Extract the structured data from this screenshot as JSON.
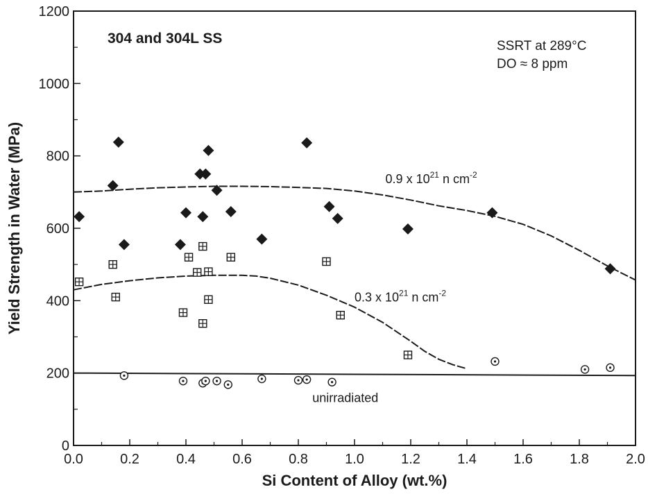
{
  "chart_data": {
    "type": "scatter",
    "title": "304 and 304L SS",
    "annotation_lines": [
      "SSRT at 289°C",
      "DO ≈ 8 ppm"
    ],
    "xlabel": "Si Content of Alloy (wt.%)",
    "ylabel": "Yield Strength in Water (MPa)",
    "xlim": [
      0.0,
      2.0
    ],
    "ylim": [
      0,
      1200
    ],
    "xticks": [
      "0.0",
      "0.2",
      "0.4",
      "0.6",
      "0.8",
      "1.0",
      "1.2",
      "1.4",
      "1.6",
      "1.8",
      "2.0"
    ],
    "yticks": [
      "0",
      "200",
      "400",
      "600",
      "800",
      "1000",
      "1200"
    ],
    "grid": false,
    "series": [
      {
        "marker": "filled-diamond",
        "points": [
          {
            "x": 0.02,
            "y": 632
          },
          {
            "x": 0.14,
            "y": 718
          },
          {
            "x": 0.16,
            "y": 838
          },
          {
            "x": 0.18,
            "y": 555
          },
          {
            "x": 0.38,
            "y": 555
          },
          {
            "x": 0.4,
            "y": 643
          },
          {
            "x": 0.45,
            "y": 750
          },
          {
            "x": 0.46,
            "y": 632
          },
          {
            "x": 0.47,
            "y": 750
          },
          {
            "x": 0.48,
            "y": 815
          },
          {
            "x": 0.51,
            "y": 705
          },
          {
            "x": 0.56,
            "y": 646
          },
          {
            "x": 0.67,
            "y": 570
          },
          {
            "x": 0.83,
            "y": 836
          },
          {
            "x": 0.91,
            "y": 660
          },
          {
            "x": 0.94,
            "y": 627
          },
          {
            "x": 1.19,
            "y": 598
          },
          {
            "x": 1.49,
            "y": 643
          },
          {
            "x": 1.91,
            "y": 488
          }
        ]
      },
      {
        "marker": "boxed-plus",
        "points": [
          {
            "x": 0.02,
            "y": 452
          },
          {
            "x": 0.14,
            "y": 500
          },
          {
            "x": 0.15,
            "y": 410
          },
          {
            "x": 0.39,
            "y": 367
          },
          {
            "x": 0.41,
            "y": 520
          },
          {
            "x": 0.44,
            "y": 478
          },
          {
            "x": 0.46,
            "y": 550
          },
          {
            "x": 0.46,
            "y": 337
          },
          {
            "x": 0.48,
            "y": 480
          },
          {
            "x": 0.48,
            "y": 403
          },
          {
            "x": 0.56,
            "y": 520
          },
          {
            "x": 0.9,
            "y": 508
          },
          {
            "x": 0.95,
            "y": 360
          },
          {
            "x": 1.19,
            "y": 250
          }
        ]
      },
      {
        "marker": "dotted-circle",
        "points": [
          {
            "x": 0.18,
            "y": 193
          },
          {
            "x": 0.39,
            "y": 178
          },
          {
            "x": 0.46,
            "y": 172
          },
          {
            "x": 0.47,
            "y": 178
          },
          {
            "x": 0.51,
            "y": 178
          },
          {
            "x": 0.55,
            "y": 168
          },
          {
            "x": 0.67,
            "y": 184
          },
          {
            "x": 0.8,
            "y": 180
          },
          {
            "x": 0.83,
            "y": 182
          },
          {
            "x": 0.92,
            "y": 175
          },
          {
            "x": 1.5,
            "y": 232
          },
          {
            "x": 1.82,
            "y": 210
          },
          {
            "x": 1.91,
            "y": 215
          }
        ]
      }
    ],
    "curves": [
      {
        "label_main": "0.9 x 10",
        "label_sup": "21",
        "label_unit": " n cm",
        "label_unit_sup": "-2",
        "label_at": [
          1.11,
          725
        ],
        "style": "dashed",
        "points": [
          [
            0.0,
            700
          ],
          [
            0.1,
            703
          ],
          [
            0.2,
            708
          ],
          [
            0.3,
            712
          ],
          [
            0.4,
            714
          ],
          [
            0.5,
            716
          ],
          [
            0.6,
            716
          ],
          [
            0.7,
            715
          ],
          [
            0.8,
            713
          ],
          [
            0.9,
            710
          ],
          [
            1.0,
            703
          ],
          [
            1.1,
            692
          ],
          [
            1.2,
            678
          ],
          [
            1.3,
            662
          ],
          [
            1.4,
            649
          ],
          [
            1.5,
            633
          ],
          [
            1.6,
            611
          ],
          [
            1.7,
            579
          ],
          [
            1.8,
            539
          ],
          [
            1.9,
            496
          ],
          [
            2.0,
            457
          ]
        ]
      },
      {
        "label_main": "0.3 x 10",
        "label_sup": "21",
        "label_unit": " n cm",
        "label_unit_sup": "-2",
        "label_at": [
          1.0,
          398
        ],
        "style": "dashed",
        "points": [
          [
            0.0,
            430
          ],
          [
            0.1,
            445
          ],
          [
            0.2,
            455
          ],
          [
            0.3,
            463
          ],
          [
            0.4,
            468
          ],
          [
            0.5,
            470
          ],
          [
            0.6,
            470
          ],
          [
            0.65,
            468
          ],
          [
            0.7,
            462
          ],
          [
            0.8,
            443
          ],
          [
            0.9,
            415
          ],
          [
            1.0,
            382
          ],
          [
            1.1,
            340
          ],
          [
            1.2,
            288
          ],
          [
            1.25,
            260
          ],
          [
            1.3,
            238
          ],
          [
            1.35,
            223
          ],
          [
            1.4,
            212
          ]
        ]
      },
      {
        "label_main": "unirradiated",
        "label_at": [
          0.85,
          120
        ],
        "style": "solid",
        "points": [
          [
            0.0,
            200
          ],
          [
            2.0,
            193
          ]
        ]
      }
    ]
  }
}
